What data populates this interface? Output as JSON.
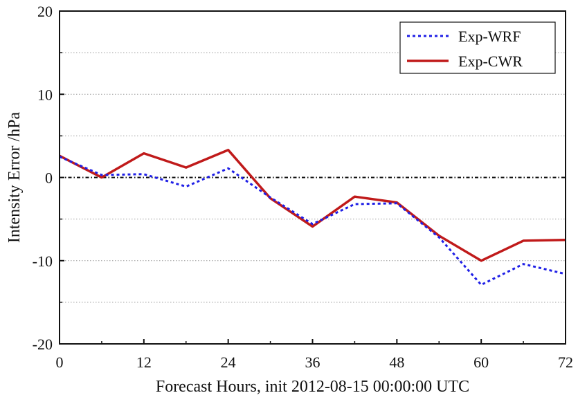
{
  "chart_data": {
    "type": "line",
    "xlabel": "Forecast Hours, init 2012-08-15 00:00:00 UTC",
    "ylabel": "Intensity Error /hPa",
    "xlim": [
      0,
      72
    ],
    "ylim": [
      -20,
      20
    ],
    "x_ticks": [
      0,
      12,
      24,
      36,
      48,
      60,
      72
    ],
    "y_ticks": [
      -20,
      -10,
      0,
      10,
      20
    ],
    "x_tick_labels": [
      "0",
      "12",
      "24",
      "36",
      "48",
      "60",
      "72"
    ],
    "y_tick_labels": [
      "-20",
      "-10",
      "0",
      "10",
      "20"
    ],
    "grid": "horizontal dotted every 5 hPa",
    "zero_line": "dash-dot at 0",
    "legend_position": "top-right",
    "x": [
      0,
      6,
      12,
      18,
      24,
      30,
      36,
      42,
      48,
      54,
      60,
      66,
      72
    ],
    "series": [
      {
        "name": "Exp-WRF",
        "style": "dotted",
        "color": "#1f1fe6",
        "values": [
          2.5,
          0.3,
          0.4,
          -1.1,
          1.1,
          -2.4,
          -5.6,
          -3.2,
          -3.1,
          -7.2,
          -12.9,
          -10.4,
          -11.6
        ]
      },
      {
        "name": "Exp-CWR",
        "style": "solid",
        "color": "#c01a1a",
        "values": [
          2.6,
          0.0,
          2.9,
          1.2,
          3.3,
          -2.5,
          -5.9,
          -2.3,
          -3.0,
          -7.0,
          -10.0,
          -7.6,
          -7.5
        ]
      }
    ]
  }
}
